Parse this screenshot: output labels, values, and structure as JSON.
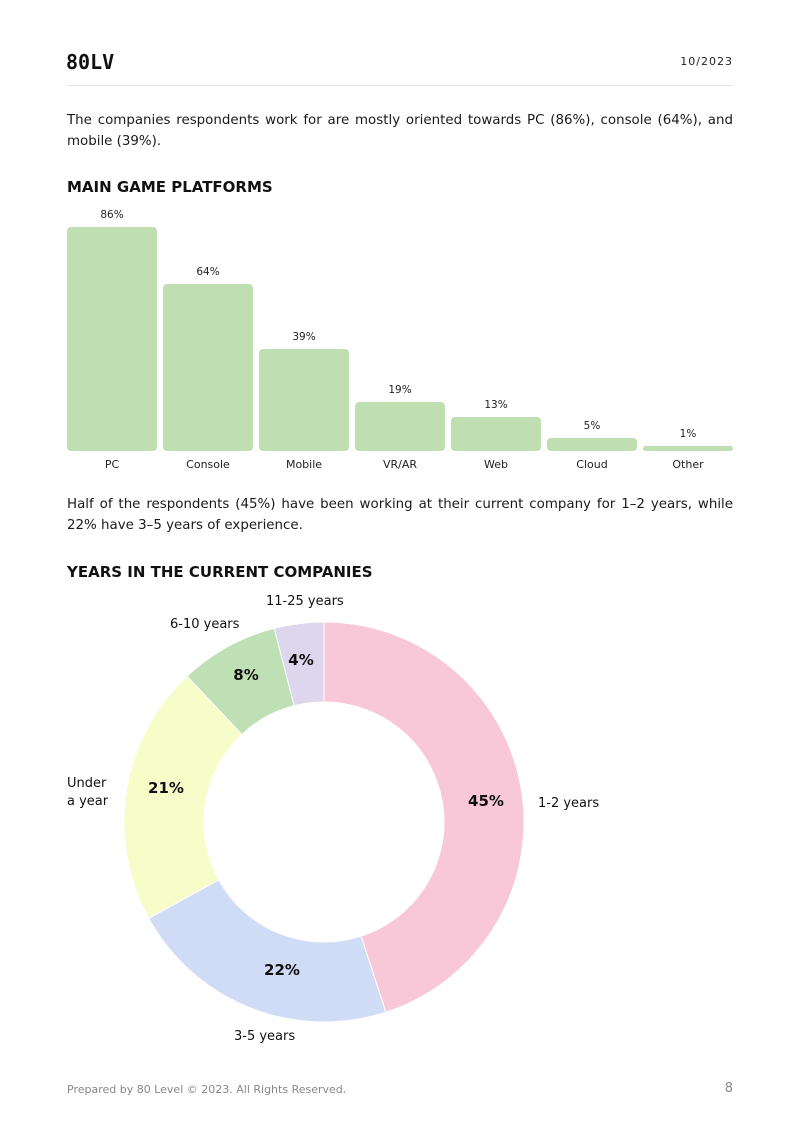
{
  "header": {
    "logo": "80LV",
    "date": "10/2023"
  },
  "paragraph1": "The companies respondents work for are mostly oriented towards PC (86%), console (64%), and mobile (39%).",
  "platforms_title": "MAIN GAME PLATFORMS",
  "paragraph2": "Half of the respondents (45%) have been working at their current company for 1–2 years, while 22% have 3–5 years of experience.",
  "years_title": "YEARS IN THE CURRENT COMPANIES",
  "chart_data": [
    {
      "type": "bar",
      "title": "MAIN GAME PLATFORMS",
      "categories": [
        "PC",
        "Console",
        "Mobile",
        "VR/AR",
        "Web",
        "Cloud",
        "Other"
      ],
      "values": [
        86,
        64,
        39,
        19,
        13,
        5,
        1
      ],
      "value_labels": [
        "86%",
        "64%",
        "39%",
        "19%",
        "13%",
        "5%",
        "1%"
      ],
      "ylim": [
        0,
        86
      ],
      "grid": false,
      "colors": [
        "#bfdfb3"
      ]
    },
    {
      "type": "pie",
      "title": "YEARS IN THE CURRENT COMPANIES",
      "categories": [
        "1-2 years",
        "3-5 years",
        "Under a year",
        "6-10 years",
        "11-25 years"
      ],
      "values": [
        45,
        22,
        21,
        8,
        4
      ],
      "value_labels": [
        "45%",
        "22%",
        "21%",
        "8%",
        "4%"
      ],
      "colors": [
        "#f8c8d8",
        "#d0dcf6",
        "#f6fdc8",
        "#bfe0b4",
        "#ddd6ec"
      ],
      "donut": true
    }
  ],
  "footer": {
    "copyright": "Prepared by 80 Level © 2023. All Rights Reserved.",
    "page": "8"
  }
}
